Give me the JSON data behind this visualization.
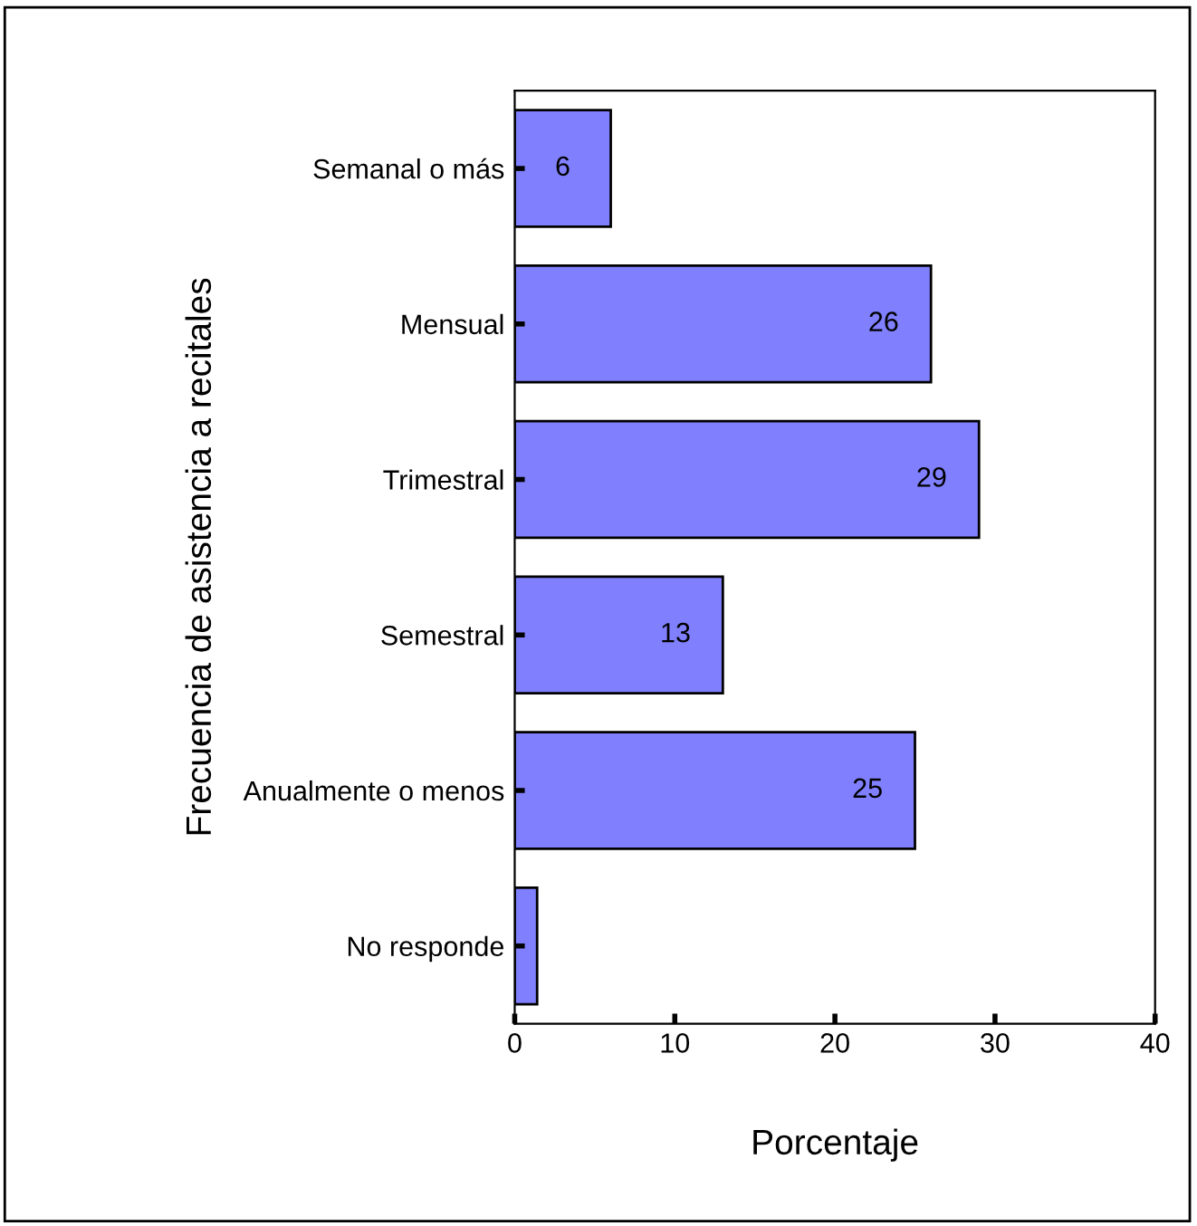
{
  "chart_data": {
    "type": "bar",
    "orientation": "horizontal",
    "xlabel": "Porcentaje",
    "ylabel": "Frecuencia de asistencia a recitales",
    "categories": [
      "Semanal o más",
      "Mensual",
      "Trimestral",
      "Semestral",
      "Anualmente o menos",
      "No responde"
    ],
    "values": [
      6,
      26,
      29,
      13,
      25,
      1.4
    ],
    "value_labels": [
      "6",
      "26",
      "29",
      "13",
      "25",
      null
    ],
    "color": "#8080ff",
    "xlim": [
      0,
      40
    ],
    "xticks": [
      0,
      10,
      20,
      30,
      40
    ],
    "grid": false,
    "legend": false
  }
}
